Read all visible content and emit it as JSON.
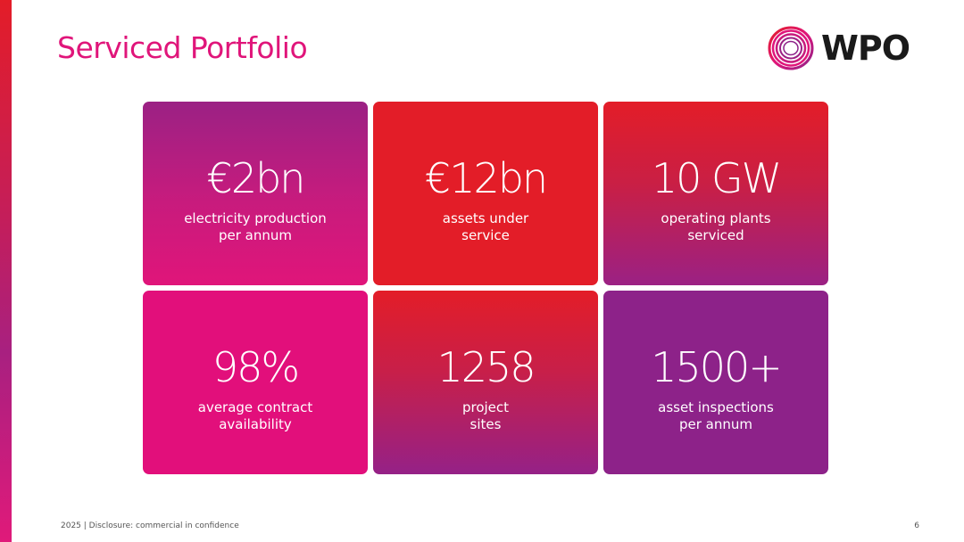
{
  "slide": {
    "title": "Serviced Portfolio",
    "logo_text": "WPO",
    "footer": "2025 | Disclosure: commercial in confidence",
    "page_number": "6"
  },
  "colors": {
    "title": "#e0157a",
    "red": "#e31d28",
    "magenta": "#e20f7b",
    "purple": "#8d2289"
  },
  "tiles": [
    {
      "value": "€2bn",
      "line1": "electricity production",
      "line2": "per annum"
    },
    {
      "value": "€12bn",
      "line1": "assets under",
      "line2": "service"
    },
    {
      "value": "10 GW",
      "line1": "operating plants",
      "line2": "serviced"
    },
    {
      "value": "98%",
      "line1": "average contract",
      "line2": "availability"
    },
    {
      "value": "1258",
      "line1": "project",
      "line2": "sites"
    },
    {
      "value": "1500+",
      "line1": "asset inspections",
      "line2": "per annum"
    }
  ]
}
